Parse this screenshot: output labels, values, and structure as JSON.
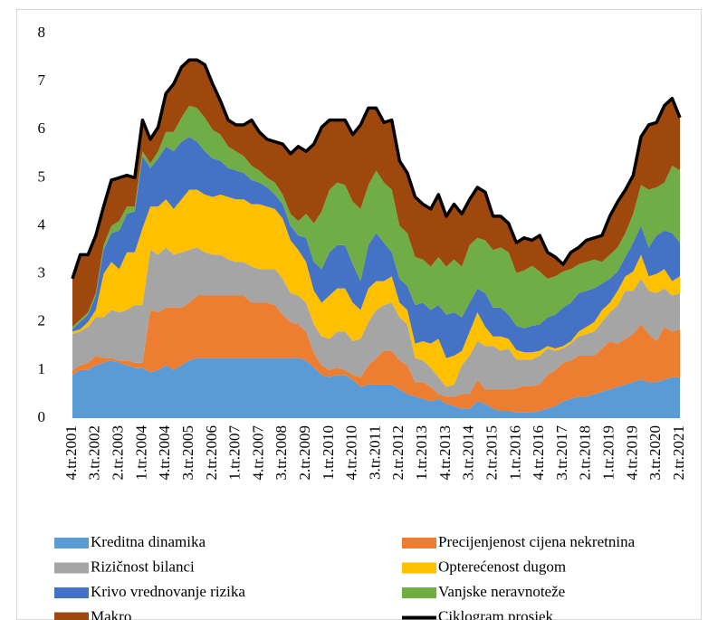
{
  "chart_data": {
    "type": "area",
    "stacked": true,
    "categories": [
      "4.tr.2001",
      null,
      null,
      "3.tr.2002",
      null,
      null,
      "2.tr.2003",
      null,
      null,
      "1.tr.2004",
      null,
      null,
      "4.tr.2004",
      null,
      null,
      "3.tr.2005",
      null,
      null,
      "2.tr.2006",
      null,
      null,
      "1.tr.2007",
      null,
      null,
      "4.tr.2007",
      null,
      null,
      "3.tr.2008",
      null,
      null,
      "2.tr.2009",
      null,
      null,
      "1.tr.2010",
      null,
      null,
      "4.tr.2010",
      null,
      null,
      "3.tr.2011",
      null,
      null,
      "2.tr.2012",
      null,
      null,
      "1.tr.2013",
      null,
      null,
      "4.tr.2013",
      null,
      null,
      "3.tr.2014",
      null,
      null,
      "2.tr.2015",
      null,
      null,
      "1.tr.2016",
      null,
      null,
      "4.tr.2016",
      null,
      null,
      "3.tr.2017",
      null,
      null,
      "2.tr.2018",
      null,
      null,
      "1.tr.2019",
      null,
      null,
      "4.tr.2019",
      null,
      null,
      "3.tr.2020",
      null,
      null,
      "2.tr.2021"
    ],
    "series": [
      {
        "name": "Kreditna dinamika",
        "color": "#5b9bd5",
        "values": [
          0.9,
          1.0,
          1.0,
          1.1,
          1.15,
          1.2,
          1.15,
          1.1,
          1.05,
          1.05,
          0.95,
          1.0,
          1.1,
          1.0,
          1.1,
          1.2,
          1.25,
          1.25,
          1.25,
          1.25,
          1.25,
          1.25,
          1.25,
          1.25,
          1.25,
          1.25,
          1.25,
          1.25,
          1.25,
          1.25,
          1.2,
          1.05,
          0.9,
          0.85,
          0.9,
          0.9,
          0.8,
          0.65,
          0.7,
          0.7,
          0.7,
          0.7,
          0.6,
          0.5,
          0.45,
          0.4,
          0.35,
          0.4,
          0.3,
          0.25,
          0.2,
          0.2,
          0.35,
          0.3,
          0.2,
          0.15,
          0.15,
          0.12,
          0.12,
          0.12,
          0.15,
          0.2,
          0.25,
          0.35,
          0.4,
          0.45,
          0.45,
          0.5,
          0.55,
          0.6,
          0.65,
          0.7,
          0.75,
          0.8,
          0.75,
          0.75,
          0.8,
          0.85,
          0.85
        ]
      },
      {
        "name": "Precijenjenost cijena nekretnina",
        "color": "#ed7d31",
        "values": [
          0.1,
          0.1,
          0.15,
          0.2,
          0.1,
          0.05,
          0.05,
          0.1,
          0.1,
          0.1,
          1.3,
          1.2,
          1.2,
          1.3,
          1.2,
          1.2,
          1.3,
          1.3,
          1.3,
          1.3,
          1.3,
          1.3,
          1.3,
          1.15,
          1.15,
          1.15,
          1.1,
          0.9,
          0.75,
          0.7,
          0.6,
          0.3,
          0.2,
          0.15,
          0.15,
          0.1,
          0.1,
          0.2,
          0.4,
          0.55,
          0.7,
          0.7,
          0.6,
          0.6,
          0.3,
          0.35,
          0.3,
          0.1,
          0.15,
          0.2,
          0.3,
          0.3,
          0.45,
          0.3,
          0.4,
          0.45,
          0.45,
          0.5,
          0.55,
          0.55,
          0.55,
          0.7,
          0.75,
          0.8,
          0.8,
          0.85,
          0.85,
          0.8,
          0.9,
          1.0,
          0.9,
          0.95,
          1.0,
          1.15,
          1.0,
          0.85,
          1.1,
          0.95,
          1.0
        ]
      },
      {
        "name": "Rizičnost bilanci",
        "color": "#a5a5a5",
        "values": [
          0.75,
          0.7,
          0.75,
          0.8,
          0.85,
          1.0,
          1.0,
          1.05,
          1.2,
          1.2,
          1.25,
          1.2,
          1.25,
          1.1,
          1.15,
          1.1,
          1.0,
          0.9,
          0.85,
          0.85,
          0.75,
          0.7,
          0.7,
          0.75,
          0.7,
          0.7,
          0.75,
          0.75,
          0.6,
          0.6,
          0.6,
          0.6,
          0.6,
          0.65,
          0.75,
          0.8,
          0.7,
          0.8,
          0.9,
          1.0,
          0.95,
          1.0,
          0.9,
          0.85,
          0.5,
          0.45,
          0.4,
          0.35,
          0.2,
          0.25,
          0.6,
          0.8,
          0.8,
          0.9,
          0.9,
          0.8,
          0.85,
          0.6,
          0.55,
          0.55,
          0.6,
          0.55,
          0.4,
          0.3,
          0.35,
          0.4,
          0.45,
          0.5,
          0.55,
          0.6,
          0.8,
          1.0,
          0.9,
          0.95,
          0.9,
          1.0,
          0.8,
          0.75,
          0.75
        ]
      },
      {
        "name": "Opterećenost dugom",
        "color": "#ffc000",
        "values": [
          0.05,
          0.05,
          0.1,
          0.15,
          0.9,
          1.0,
          0.9,
          1.2,
          1.1,
          1.6,
          0.9,
          1.0,
          1.0,
          0.95,
          1.1,
          1.25,
          1.2,
          1.2,
          1.2,
          1.25,
          1.3,
          1.3,
          1.3,
          1.3,
          1.35,
          1.3,
          1.25,
          1.25,
          1.1,
          0.95,
          0.85,
          0.7,
          0.7,
          0.9,
          0.9,
          0.9,
          0.8,
          0.6,
          0.7,
          0.6,
          0.5,
          0.55,
          0.3,
          0.3,
          0.3,
          0.4,
          0.5,
          0.8,
          0.6,
          0.6,
          0.3,
          0.5,
          0.6,
          0.4,
          0.2,
          0.3,
          0.2,
          0.2,
          0.15,
          0.15,
          0.1,
          0.05,
          0.05,
          0.05,
          0.05,
          0.1,
          0.15,
          0.2,
          0.25,
          0.2,
          0.3,
          0.3,
          0.4,
          0.5,
          0.3,
          0.4,
          0.4,
          0.3,
          0.35
        ]
      },
      {
        "name": "Krivo vrednovanje rizika",
        "color": "#4472c4",
        "values": [
          0.05,
          0.15,
          0.15,
          0.3,
          0.5,
          0.6,
          0.8,
          0.8,
          0.85,
          1.5,
          0.8,
          1.0,
          1.1,
          1.2,
          1.2,
          1.1,
          1.0,
          0.9,
          0.8,
          0.7,
          0.6,
          0.6,
          0.55,
          0.5,
          0.45,
          0.4,
          0.3,
          0.3,
          0.3,
          0.3,
          0.5,
          0.6,
          0.7,
          0.9,
          0.9,
          0.9,
          0.8,
          0.6,
          0.9,
          1.0,
          0.8,
          0.5,
          0.5,
          0.5,
          0.8,
          0.8,
          0.7,
          0.7,
          0.9,
          0.9,
          0.7,
          0.6,
          0.5,
          0.7,
          0.6,
          0.6,
          0.5,
          0.5,
          0.5,
          0.55,
          0.55,
          0.6,
          0.7,
          0.8,
          0.8,
          0.8,
          0.75,
          0.7,
          0.55,
          0.5,
          0.4,
          0.4,
          0.6,
          0.6,
          0.6,
          0.8,
          0.8,
          1.0,
          0.7
        ]
      },
      {
        "name": "Vanjske neravnoteže",
        "color": "#70ad47",
        "values": [
          0.05,
          0.05,
          0.05,
          0.05,
          0.1,
          0.15,
          0.2,
          0.15,
          0.1,
          0.1,
          0.1,
          0.15,
          0.3,
          0.4,
          0.5,
          0.65,
          0.7,
          0.7,
          0.6,
          0.55,
          0.45,
          0.4,
          0.35,
          0.3,
          0.25,
          0.2,
          0.25,
          0.2,
          0.25,
          0.3,
          0.5,
          0.8,
          1.2,
          1.3,
          1.3,
          1.25,
          1.3,
          1.5,
          1.25,
          1.3,
          1.25,
          1.3,
          1.1,
          1.1,
          1.0,
          0.9,
          0.9,
          1.0,
          1.0,
          1.1,
          1.05,
          1.2,
          1.05,
          1.1,
          1.2,
          1.25,
          1.3,
          1.1,
          1.2,
          1.25,
          1.1,
          0.8,
          0.8,
          0.75,
          0.7,
          0.6,
          0.6,
          0.6,
          0.45,
          0.5,
          0.5,
          0.5,
          0.6,
          0.85,
          1.2,
          1.0,
          1.0,
          1.4,
          1.5
        ]
      },
      {
        "name": "Makro",
        "color": "#9e480e",
        "values": [
          1.0,
          1.35,
          1.2,
          1.2,
          0.8,
          0.95,
          0.9,
          0.65,
          0.6,
          0.65,
          0.5,
          0.5,
          0.8,
          1.0,
          1.05,
          0.95,
          1.0,
          1.1,
          0.95,
          0.7,
          0.55,
          0.55,
          0.65,
          0.95,
          0.8,
          0.8,
          0.85,
          1.05,
          1.25,
          1.55,
          1.3,
          1.65,
          1.75,
          1.45,
          1.3,
          1.35,
          1.4,
          1.75,
          1.6,
          1.3,
          1.25,
          1.45,
          1.35,
          1.25,
          1.25,
          1.15,
          1.2,
          1.3,
          1.05,
          1.15,
          1.1,
          0.95,
          1.05,
          1.0,
          0.7,
          0.65,
          0.6,
          0.6,
          0.7,
          0.55,
          0.75,
          0.55,
          0.4,
          0.15,
          0.35,
          0.35,
          0.45,
          0.45,
          0.55,
          0.8,
          0.95,
          0.9,
          0.8,
          1.0,
          1.35,
          1.35,
          1.6,
          1.4,
          1.1
        ]
      },
      {
        "name": "Ciklogram prosjek",
        "color": "#000000",
        "type": "line",
        "values": [
          2.9,
          3.4,
          3.4,
          3.8,
          4.4,
          4.95,
          5.0,
          5.05,
          5.0,
          6.2,
          5.8,
          6.05,
          6.75,
          6.95,
          7.3,
          7.45,
          7.45,
          7.35,
          6.95,
          6.6,
          6.2,
          6.1,
          6.1,
          6.2,
          5.95,
          5.8,
          5.75,
          5.7,
          5.5,
          5.65,
          5.55,
          5.7,
          6.05,
          6.2,
          6.2,
          6.2,
          5.9,
          6.1,
          6.45,
          6.45,
          6.15,
          6.2,
          5.35,
          5.1,
          4.6,
          4.45,
          4.35,
          4.65,
          4.2,
          4.45,
          4.25,
          4.55,
          4.8,
          4.7,
          4.2,
          4.2,
          4.05,
          3.65,
          3.75,
          3.7,
          3.8,
          3.45,
          3.35,
          3.2,
          3.45,
          3.55,
          3.7,
          3.75,
          3.8,
          4.2,
          4.5,
          4.75,
          5.05,
          5.85,
          6.1,
          6.15,
          6.5,
          6.65,
          6.25
        ]
      }
    ],
    "ylim": [
      0,
      8
    ],
    "yticks": [
      0,
      1,
      2,
      3,
      4,
      5,
      6,
      7,
      8
    ],
    "grid": false
  }
}
